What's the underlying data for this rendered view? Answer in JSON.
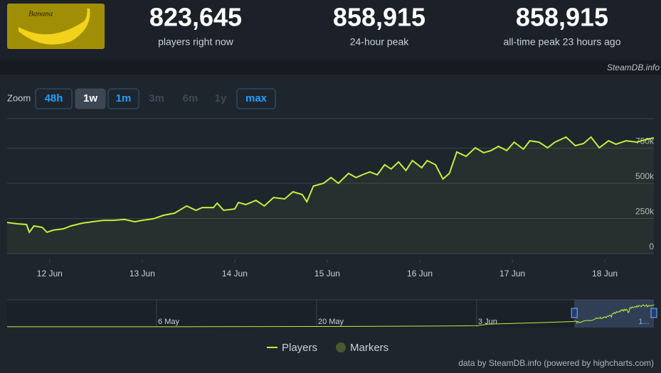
{
  "header": {
    "game": "Banana",
    "stats": [
      {
        "value": "823,645",
        "label": "players right now"
      },
      {
        "value": "858,915",
        "label": "24-hour peak"
      },
      {
        "value": "858,915",
        "label": "all-time peak 23 hours ago"
      }
    ],
    "credit": "SteamDB.info"
  },
  "zoom": {
    "label": "Zoom",
    "buttons": [
      "48h",
      "1w",
      "1m",
      "3m",
      "6m",
      "1y",
      "max"
    ],
    "active": 1,
    "disabled": [
      3,
      4,
      5
    ]
  },
  "chart_data": {
    "type": "line",
    "x": [
      11.54,
      11.65,
      11.75,
      11.78,
      11.83,
      11.92,
      11.97,
      12.04,
      12.15,
      12.23,
      12.35,
      12.46,
      12.58,
      12.69,
      12.81,
      12.92,
      13.0,
      13.12,
      13.23,
      13.35,
      13.48,
      13.58,
      13.65,
      13.77,
      13.81,
      13.88,
      14.0,
      14.04,
      14.12,
      14.23,
      14.32,
      14.42,
      14.54,
      14.63,
      14.73,
      14.78,
      14.85,
      14.96,
      15.04,
      15.12,
      15.23,
      15.31,
      15.38,
      15.46,
      15.54,
      15.62,
      15.69,
      15.77,
      15.85,
      15.92,
      16.02,
      16.08,
      16.17,
      16.25,
      16.32,
      16.4,
      16.5,
      16.6,
      16.69,
      16.77,
      16.85,
      16.94,
      17.02,
      17.12,
      17.19,
      17.29,
      17.38,
      17.46,
      17.58,
      17.68,
      17.77,
      17.85,
      17.94,
      18.04,
      18.12,
      18.23,
      18.35,
      18.42,
      18.53
    ],
    "series": [
      {
        "name": "Players",
        "color": "#c1f03c",
        "values": [
          222000,
          212000,
          207000,
          152000,
          197000,
          187000,
          152000,
          167000,
          177000,
          197000,
          217000,
          227000,
          237000,
          237000,
          243000,
          227000,
          237000,
          248000,
          273000,
          288000,
          339000,
          308000,
          328000,
          328000,
          359000,
          308000,
          318000,
          364000,
          349000,
          379000,
          339000,
          399000,
          389000,
          440000,
          420000,
          369000,
          480000,
          500000,
          541000,
          500000,
          571000,
          541000,
          561000,
          581000,
          561000,
          632000,
          602000,
          652000,
          591000,
          662000,
          611000,
          662000,
          632000,
          531000,
          571000,
          723000,
          692000,
          753000,
          718000,
          733000,
          763000,
          733000,
          793000,
          743000,
          803000,
          793000,
          753000,
          793000,
          829000,
          768000,
          783000,
          829000,
          753000,
          803000,
          778000,
          803000,
          793000,
          808000,
          823645
        ]
      }
    ],
    "marker_legend": {
      "name": "Markers",
      "color": "#4a5a30"
    },
    "xlim": [
      11.54,
      18.53
    ],
    "xticks": [
      {
        "value": 12,
        "label": "12 Jun"
      },
      {
        "value": 13,
        "label": "13 Jun"
      },
      {
        "value": 14,
        "label": "14 Jun"
      },
      {
        "value": 15,
        "label": "15 Jun"
      },
      {
        "value": 16,
        "label": "16 Jun"
      },
      {
        "value": 17,
        "label": "17 Jun"
      },
      {
        "value": 18,
        "label": "18 Jun"
      }
    ],
    "ylim": [
      0,
      960000
    ],
    "yticks": [
      0,
      {
        "value": 250000,
        "label": "250k"
      },
      {
        "value": 500000,
        "label": "500k"
      },
      {
        "value": 750000,
        "label": "750k"
      }
    ],
    "grid": true,
    "navigator": {
      "x": [
        -38.07,
        -20,
        -5,
        3,
        4,
        8,
        11.54
      ],
      "values": [
        2000,
        5000,
        20000,
        40000,
        100000,
        150000,
        200000
      ],
      "xlim": [
        -38.07,
        18.5
      ],
      "xticks": [
        {
          "value": -25,
          "label": "6 May"
        },
        {
          "value": -11,
          "label": "20 May"
        },
        {
          "value": 3,
          "label": "3 Jun"
        }
      ],
      "range_label": "1..."
    },
    "footer": "data by SteamDB.info (powered by highcharts.com)"
  }
}
